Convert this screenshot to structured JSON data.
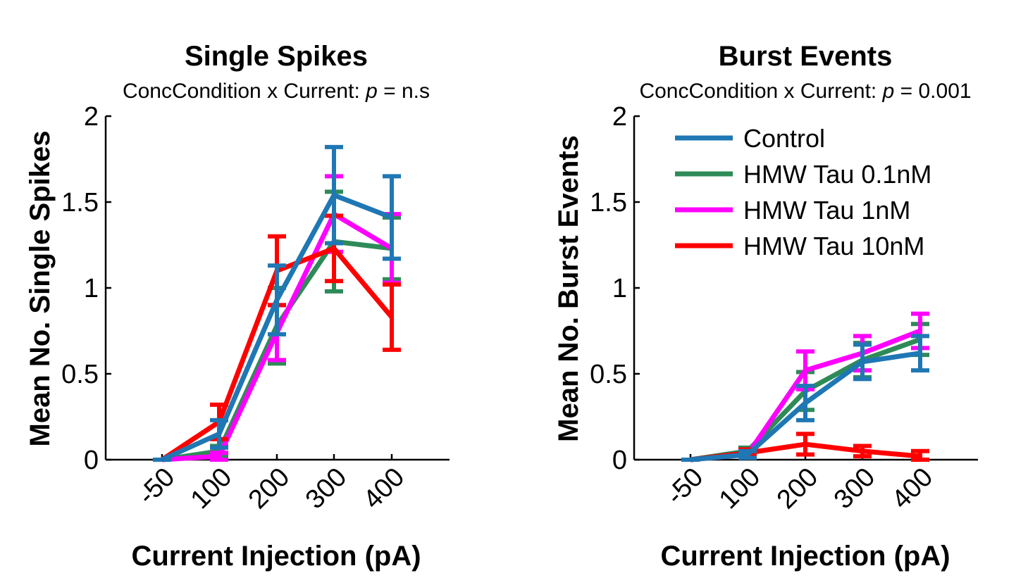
{
  "chart_data": [
    {
      "type": "line",
      "title": "Single Spikes",
      "subtitle": {
        "prefix": "ConcCondition x Current: ",
        "p_symbol": "p",
        "suffix": " = n.s"
      },
      "xlabel": "Current Injection (pA)",
      "ylabel": "Mean No. Single Spikes",
      "categories": [
        "-50",
        "100",
        "200",
        "300",
        "400"
      ],
      "yticks": [
        "0",
        "0.5",
        "1",
        "1.5",
        "2"
      ],
      "ylim": [
        0,
        2
      ],
      "series": [
        {
          "name": "HMW Tau 0.1nM",
          "color": "#2e8b57",
          "values": [
            0,
            0.05,
            0.78,
            1.27,
            1.23
          ],
          "errors": [
            0,
            0.03,
            0.22,
            0.29,
            0.18
          ]
        },
        {
          "name": "HMW Tau 1nM",
          "color": "#ff00ff",
          "values": [
            0,
            0.02,
            0.74,
            1.43,
            1.23
          ],
          "errors": [
            0,
            0.02,
            0.16,
            0.22,
            0.2
          ]
        },
        {
          "name": "HMW Tau 10nM",
          "color": "#ff0000",
          "values": [
            0,
            0.22,
            1.1,
            1.23,
            0.83
          ],
          "errors": [
            0,
            0.1,
            0.2,
            0.19,
            0.19
          ]
        },
        {
          "name": "Control",
          "color": "#1f77b4",
          "values": [
            0,
            0.15,
            0.93,
            1.54,
            1.41
          ],
          "errors": [
            0,
            0.08,
            0.2,
            0.28,
            0.24
          ]
        }
      ]
    },
    {
      "type": "line",
      "title": "Burst Events",
      "subtitle": {
        "prefix": "ConcCondition x Current: ",
        "p_symbol": "p",
        "suffix": " = 0.001"
      },
      "xlabel": "Current Injection (pA)",
      "ylabel": "Mean No. Burst Events",
      "categories": [
        "-50",
        "100",
        "200",
        "300",
        "400"
      ],
      "yticks": [
        "0",
        "0.5",
        "1",
        "1.5",
        "2"
      ],
      "ylim": [
        0,
        2
      ],
      "legend_position": "top-right",
      "legend_order": [
        "Control",
        "HMW Tau 0.1nM",
        "HMW Tau 1nM",
        "HMW Tau 10nM"
      ],
      "series": [
        {
          "name": "HMW Tau 0.1nM",
          "color": "#2e8b57",
          "values": [
            0,
            0.05,
            0.4,
            0.58,
            0.7
          ],
          "errors": [
            0,
            0.02,
            0.11,
            0.1,
            0.09
          ]
        },
        {
          "name": "HMW Tau 1nM",
          "color": "#ff00ff",
          "values": [
            0,
            0.03,
            0.52,
            0.62,
            0.75
          ],
          "errors": [
            0,
            0.02,
            0.11,
            0.1,
            0.1
          ]
        },
        {
          "name": "HMW Tau 10nM",
          "color": "#ff0000",
          "values": [
            0,
            0.04,
            0.09,
            0.05,
            0.02
          ],
          "errors": [
            0,
            0.02,
            0.06,
            0.03,
            0.03
          ]
        },
        {
          "name": "Control",
          "color": "#1f77b4",
          "values": [
            0,
            0.03,
            0.33,
            0.57,
            0.62
          ],
          "errors": [
            0,
            0.02,
            0.1,
            0.1,
            0.1
          ]
        }
      ]
    }
  ]
}
